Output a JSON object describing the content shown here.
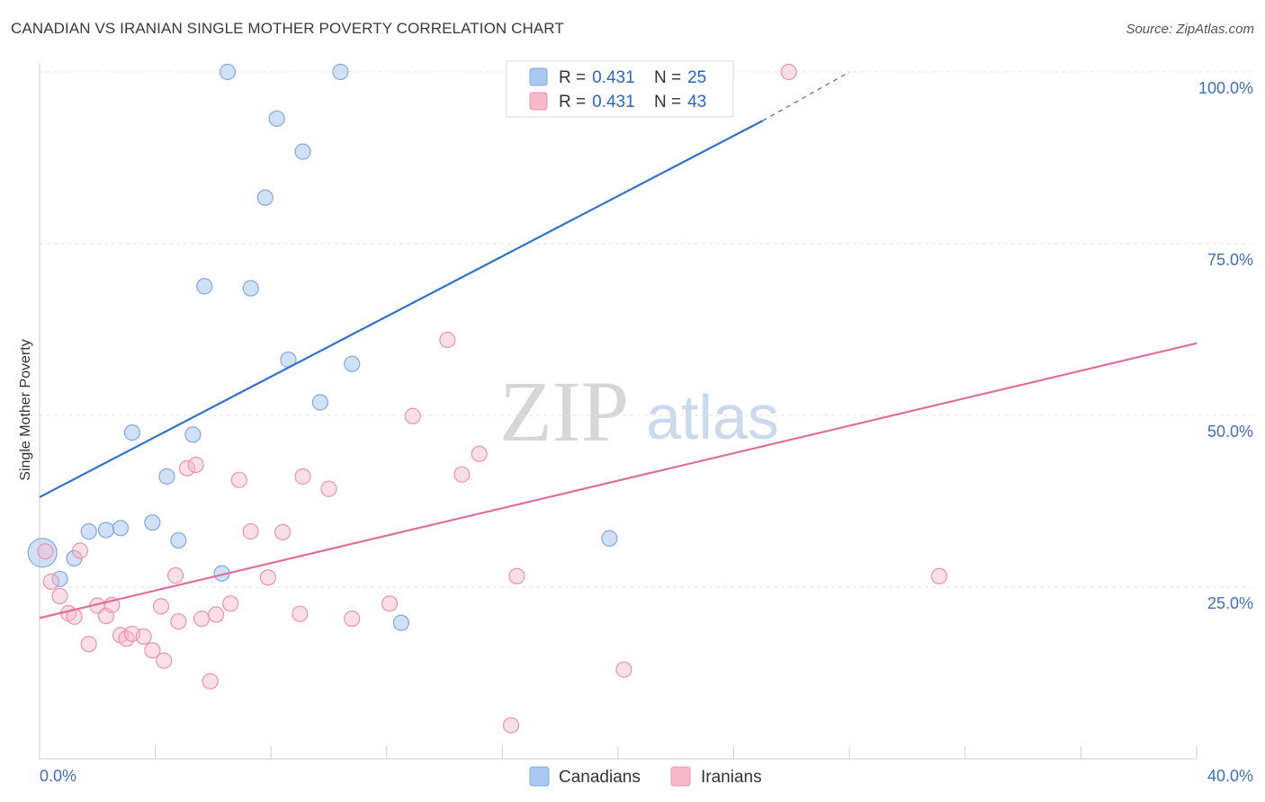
{
  "header": {
    "title": "CANADIAN VS IRANIAN SINGLE MOTHER POVERTY CORRELATION CHART",
    "source": "Source: ZipAtlas.com"
  },
  "watermark": {
    "zip": "ZIP",
    "atlas": "atlas"
  },
  "legend": {
    "rows": [
      {
        "r_label": "R =",
        "r_value": "0.431",
        "n_label": "N =",
        "n_value": "25",
        "color": "#a9c8f0"
      },
      {
        "r_label": "R =",
        "r_value": "0.431",
        "n_label": "N =",
        "n_value": "43",
        "color": "#f6b8ca"
      }
    ]
  },
  "bottom_legend": {
    "canadians": "Canadians",
    "iranians": "Iranians"
  },
  "chart_data": {
    "type": "scatter",
    "title": "CANADIAN VS IRANIAN SINGLE MOTHER POVERTY CORRELATION CHART",
    "xlabel": "",
    "ylabel": "Single Mother Poverty",
    "xlim": [
      0,
      40
    ],
    "ylim": [
      0,
      102
    ],
    "x_tick_labels": [
      "0.0%",
      "40.0%"
    ],
    "y_ticks": [
      25,
      50,
      75,
      100
    ],
    "y_tick_labels": [
      "25.0%",
      "50.0%",
      "75.0%",
      "100.0%"
    ],
    "grid": true,
    "legend_position": "top-center",
    "series": [
      {
        "name": "Canadians",
        "color": "#a9c8f0",
        "line_color": "#2f72d0",
        "regression": {
          "x0": 0,
          "y0": 38.1,
          "x1": 25,
          "y1": 92.9,
          "dash_to_x": 28,
          "dash_to_y": 100
        },
        "points": [
          [
            0.1,
            30.0,
            "large"
          ],
          [
            0.7,
            26.2
          ],
          [
            1.2,
            29.2
          ],
          [
            1.7,
            33.1
          ],
          [
            2.3,
            33.3
          ],
          [
            2.8,
            33.6
          ],
          [
            3.2,
            47.5
          ],
          [
            3.9,
            34.4
          ],
          [
            4.4,
            41.1
          ],
          [
            4.8,
            31.8
          ],
          [
            5.3,
            47.2
          ],
          [
            5.7,
            68.8
          ],
          [
            6.3,
            27.0
          ],
          [
            6.5,
            100.0
          ],
          [
            7.3,
            68.5
          ],
          [
            7.8,
            81.7
          ],
          [
            8.2,
            93.2
          ],
          [
            8.6,
            58.1
          ],
          [
            9.1,
            88.4
          ],
          [
            9.7,
            51.9
          ],
          [
            10.4,
            100.0
          ],
          [
            10.8,
            57.5
          ],
          [
            12.5,
            19.8
          ],
          [
            19.7,
            32.1
          ],
          [
            20.8,
            100.0
          ]
        ]
      },
      {
        "name": "Iranians",
        "color": "#f6b8ca",
        "line_color": "#e0709a",
        "regression": {
          "x0": 0,
          "y0": 20.5,
          "x1": 40,
          "y1": 60.5
        },
        "points": [
          [
            0.2,
            30.2
          ],
          [
            0.4,
            25.8
          ],
          [
            0.7,
            23.7
          ],
          [
            1.0,
            21.2
          ],
          [
            1.2,
            20.7
          ],
          [
            1.4,
            30.3
          ],
          [
            1.7,
            16.7
          ],
          [
            2.0,
            22.3
          ],
          [
            2.3,
            20.8
          ],
          [
            2.5,
            22.4
          ],
          [
            2.8,
            18.0
          ],
          [
            3.0,
            17.5
          ],
          [
            3.2,
            18.2
          ],
          [
            3.6,
            17.8
          ],
          [
            3.9,
            15.8
          ],
          [
            4.2,
            22.2
          ],
          [
            4.3,
            14.3
          ],
          [
            4.7,
            26.7
          ],
          [
            4.8,
            20.0
          ],
          [
            5.1,
            42.3
          ],
          [
            5.4,
            42.8
          ],
          [
            5.6,
            20.4
          ],
          [
            5.9,
            11.3
          ],
          [
            6.1,
            21.0
          ],
          [
            6.6,
            22.6
          ],
          [
            6.9,
            40.6
          ],
          [
            7.3,
            33.1
          ],
          [
            7.9,
            26.4
          ],
          [
            8.4,
            33.0
          ],
          [
            9.1,
            41.1
          ],
          [
            9.0,
            21.1
          ],
          [
            10.0,
            39.3
          ],
          [
            10.8,
            20.4
          ],
          [
            12.1,
            22.6
          ],
          [
            12.9,
            49.9
          ],
          [
            14.1,
            61.0
          ],
          [
            14.6,
            41.4
          ],
          [
            15.2,
            44.4
          ],
          [
            16.3,
            4.9
          ],
          [
            16.5,
            26.6
          ],
          [
            20.2,
            13.0
          ],
          [
            25.9,
            100.0
          ],
          [
            31.1,
            26.6
          ]
        ]
      }
    ]
  }
}
